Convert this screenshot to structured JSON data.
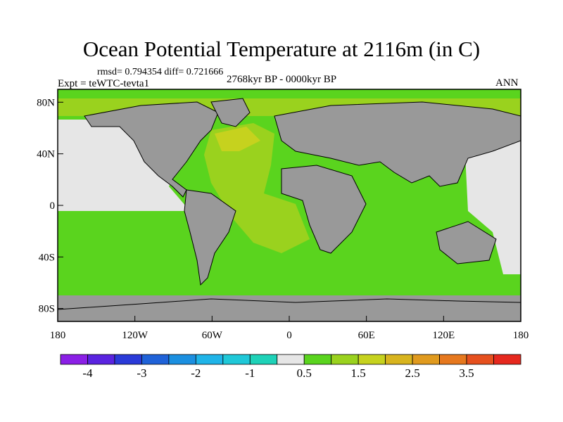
{
  "title": "Ocean Potential Temperature at 2116m (in C)",
  "stats": "rmsd= 0.794354   diff= 0.721666",
  "experiment": "Expt = teWTC-tevta1",
  "period": "2768kyr BP - 0000kyr BP",
  "season": "ANN",
  "map": {
    "lon_range": [
      -180,
      180
    ],
    "lat_range": [
      -90,
      90
    ],
    "lat_ticks": [
      {
        "label": "80N",
        "lat": 80
      },
      {
        "label": "40N",
        "lat": 40
      },
      {
        "label": "0",
        "lat": 0
      },
      {
        "label": "40S",
        "lat": -40
      },
      {
        "label": "80S",
        "lat": -80
      }
    ],
    "lon_ticks": [
      {
        "label": "180",
        "lon": -180
      },
      {
        "label": "120W",
        "lon": -120
      },
      {
        "label": "60W",
        "lon": -60
      },
      {
        "label": "0",
        "lon": 0
      },
      {
        "label": "60E",
        "lon": 60
      },
      {
        "label": "120E",
        "lon": 120
      },
      {
        "label": "180",
        "lon": 180
      }
    ],
    "land_color": "#999999",
    "field_note": "Temperature difference field; mostly 0.5 to 1 C (green) in Southern and Indian Oceans, 1 to 1.5 C (yellow-green) in Atlantic, near zero (light grey) in North Pacific"
  },
  "colorbar": {
    "colors": [
      "#8b1fe6",
      "#5a23e0",
      "#2a3ad8",
      "#1f62d8",
      "#1b8fe0",
      "#1fb4e8",
      "#1fc8d8",
      "#1ed2b8",
      "#e6e6e6",
      "#5ad41e",
      "#9ad21e",
      "#c6d21e",
      "#d8b41e",
      "#e09a1e",
      "#e6781e",
      "#e6501e",
      "#e6281e"
    ],
    "labels": [
      {
        "text": "-4",
        "boundary": 1
      },
      {
        "text": "-3",
        "boundary": 3
      },
      {
        "text": "-2",
        "boundary": 5
      },
      {
        "text": "-1",
        "boundary": 7
      },
      {
        "text": "0.5",
        "boundary": 9
      },
      {
        "text": "1.5",
        "boundary": 11
      },
      {
        "text": "2.5",
        "boundary": 13
      },
      {
        "text": "3.5",
        "boundary": 15
      }
    ]
  }
}
